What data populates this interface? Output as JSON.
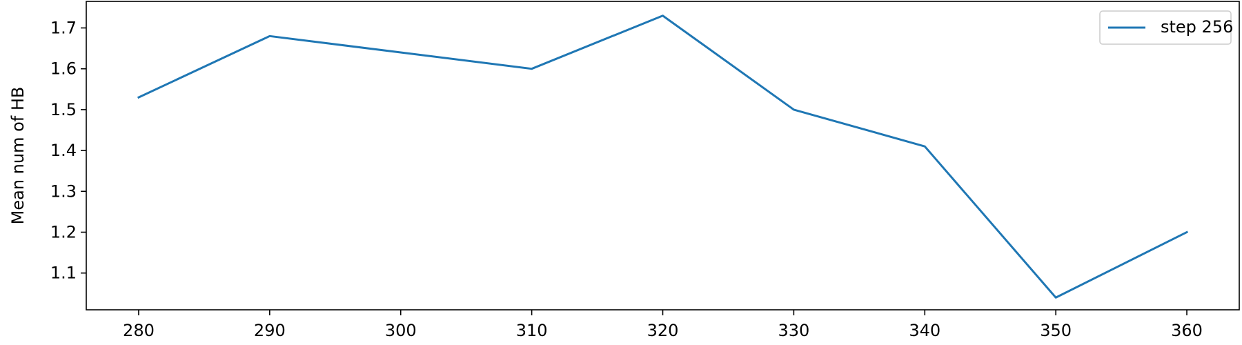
{
  "chart_data": {
    "type": "line",
    "title": "",
    "xlabel": "",
    "ylabel": "Mean num of HB",
    "x": [
      280,
      290,
      300,
      310,
      320,
      330,
      340,
      350,
      360
    ],
    "series": [
      {
        "name": "step 256",
        "color": "#1f77b4",
        "values": [
          1.53,
          1.68,
          1.64,
          1.6,
          1.73,
          1.5,
          1.41,
          1.04,
          1.2
        ]
      }
    ],
    "xlim": [
      276,
      364
    ],
    "ylim": [
      1.01,
      1.765
    ],
    "x_ticks": [
      280,
      290,
      300,
      310,
      320,
      330,
      340,
      350,
      360
    ],
    "y_ticks": [
      1.1,
      1.2,
      1.3,
      1.4,
      1.5,
      1.6,
      1.7
    ],
    "x_tick_labels": [
      "280",
      "290",
      "300",
      "310",
      "320",
      "330",
      "340",
      "350",
      "360"
    ],
    "y_tick_labels": [
      "1.1",
      "1.2",
      "1.3",
      "1.4",
      "1.5",
      "1.6",
      "1.7"
    ],
    "grid": false,
    "legend_position": "top-right"
  }
}
